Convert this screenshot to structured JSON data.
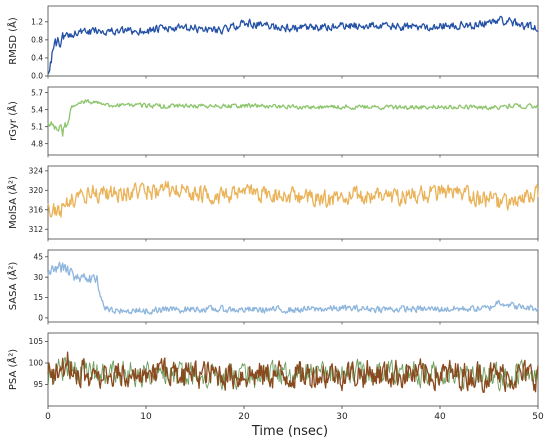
{
  "chart_data": [
    {
      "type": "line",
      "ylabel": "RMSD (Å)",
      "xlim": [
        0,
        50
      ],
      "ylim": [
        0.0,
        1.55
      ],
      "yticks": [
        "0.0",
        "0.4",
        "0.8",
        "1.2"
      ],
      "color": "#2451a6",
      "series": [
        {
          "x": [
            0,
            0.5,
            1,
            2,
            3,
            4,
            5,
            7,
            10,
            12,
            15,
            18,
            20,
            22,
            25,
            28,
            30,
            33,
            36,
            40,
            43,
            45,
            46,
            48,
            50
          ],
          "y": [
            0.1,
            0.55,
            0.75,
            0.9,
            0.98,
            0.95,
            1.02,
            0.98,
            1.0,
            1.05,
            1.05,
            1.02,
            1.18,
            1.12,
            1.05,
            1.07,
            1.1,
            1.12,
            1.08,
            1.1,
            1.12,
            1.18,
            1.25,
            1.15,
            1.05
          ]
        }
      ]
    },
    {
      "type": "line",
      "ylabel": "rGyr (Å)",
      "xlim": [
        0,
        50
      ],
      "ylim": [
        4.6,
        5.8
      ],
      "yticks": [
        "4.8",
        "5.1",
        "5.4",
        "5.7"
      ],
      "color": "#8cc56b",
      "series": [
        {
          "x": [
            0,
            1,
            1.5,
            2,
            2.5,
            3,
            4,
            6,
            10,
            15,
            20,
            25,
            30,
            35,
            40,
            45,
            48,
            50
          ],
          "y": [
            5.15,
            5.1,
            5.0,
            5.2,
            5.45,
            5.52,
            5.55,
            5.48,
            5.47,
            5.46,
            5.47,
            5.45,
            5.45,
            5.44,
            5.45,
            5.44,
            5.47,
            5.45
          ]
        }
      ]
    },
    {
      "type": "line",
      "ylabel": "MolSA (Å²)",
      "xlim": [
        0,
        50
      ],
      "ylim": [
        310,
        325
      ],
      "yticks": [
        "312",
        "316",
        "320",
        "324"
      ],
      "color": "#eab35a",
      "series": [
        {
          "x": [
            0,
            1,
            2,
            3,
            5,
            8,
            12,
            15,
            18,
            20,
            25,
            28,
            30,
            33,
            36,
            40,
            44,
            46,
            48,
            50
          ],
          "y": [
            316,
            315.5,
            317.5,
            318.5,
            319.5,
            319.5,
            320,
            319.5,
            318.5,
            319.5,
            319,
            318,
            318.5,
            319,
            318.8,
            319.5,
            318.5,
            317.5,
            317.5,
            319.5
          ]
        }
      ]
    },
    {
      "type": "line",
      "ylabel": "SASA (Å²)",
      "xlim": [
        0,
        50
      ],
      "ylim": [
        -3,
        50
      ],
      "yticks": [
        "0",
        "15",
        "30",
        "45"
      ],
      "color": "#8fb6dd",
      "series": [
        {
          "x": [
            0,
            1,
            2,
            3,
            4,
            5,
            5.5,
            6,
            7,
            10,
            15,
            20,
            25,
            30,
            35,
            40,
            45,
            46,
            48,
            50
          ],
          "y": [
            33,
            38,
            35,
            30,
            30,
            28,
            12,
            6,
            5,
            5.5,
            6.5,
            6,
            6,
            7,
            6.5,
            6.5,
            7,
            12,
            8,
            7
          ]
        }
      ]
    },
    {
      "type": "line",
      "ylabel": "PSA (Å²)",
      "xlim": [
        0,
        50
      ],
      "ylim": [
        90,
        107
      ],
      "yticks": [
        "95",
        "100",
        "105"
      ],
      "color": "#8a4a1f",
      "accent_color": "#3e7d2a",
      "xlabel": "Time (nsec)",
      "xticks": [
        "0",
        "10",
        "20",
        "30",
        "40",
        "50"
      ],
      "series": [
        {
          "x": [
            0,
            1,
            2,
            3,
            5,
            10,
            15,
            20,
            25,
            30,
            35,
            40,
            45,
            50
          ],
          "y": [
            97,
            98,
            100,
            97.5,
            97.5,
            97.5,
            97.5,
            97.3,
            97.2,
            97.5,
            97.5,
            97.3,
            97.2,
            97
          ]
        }
      ]
    }
  ]
}
